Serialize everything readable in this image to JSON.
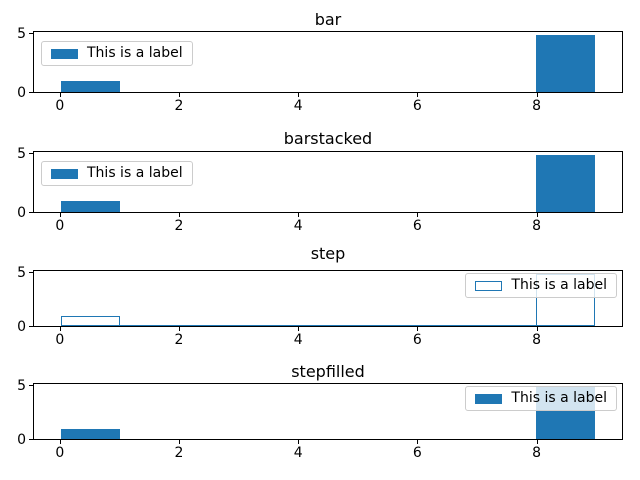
{
  "colors": {
    "accent": "#1f77b4",
    "legend_border": "#cccccc",
    "spine": "#000000"
  },
  "legend_label": "This is a label",
  "chart_data": [
    {
      "type": "bar",
      "chart_kind": "histogram",
      "title": "bar",
      "histtype": "bar",
      "bin_edges": [
        0,
        1,
        2,
        3,
        4,
        5,
        6,
        7,
        8,
        9
      ],
      "counts": [
        1,
        0,
        0,
        0,
        0,
        0,
        0,
        0,
        5
      ],
      "xlim": [
        -0.45,
        9.45
      ],
      "ylim": [
        0,
        5.25
      ],
      "xticks": [
        0,
        2,
        4,
        6,
        8
      ],
      "yticks": [
        0,
        5
      ],
      "legend": {
        "label": "This is a label",
        "loc": "upper left",
        "swatch": "filled"
      }
    },
    {
      "type": "bar",
      "chart_kind": "histogram",
      "title": "barstacked",
      "histtype": "barstacked",
      "bin_edges": [
        0,
        1,
        2,
        3,
        4,
        5,
        6,
        7,
        8,
        9
      ],
      "counts": [
        1,
        0,
        0,
        0,
        0,
        0,
        0,
        0,
        5
      ],
      "xlim": [
        -0.45,
        9.45
      ],
      "ylim": [
        0,
        5.25
      ],
      "xticks": [
        0,
        2,
        4,
        6,
        8
      ],
      "yticks": [
        0,
        5
      ],
      "legend": {
        "label": "This is a label",
        "loc": "upper left",
        "swatch": "filled"
      }
    },
    {
      "type": "bar",
      "chart_kind": "histogram",
      "title": "step",
      "histtype": "step",
      "bin_edges": [
        0,
        1,
        2,
        3,
        4,
        5,
        6,
        7,
        8,
        9
      ],
      "counts": [
        1,
        0,
        0,
        0,
        0,
        0,
        0,
        0,
        5
      ],
      "xlim": [
        -0.45,
        9.45
      ],
      "ylim": [
        0,
        5.25
      ],
      "xticks": [
        0,
        2,
        4,
        6,
        8
      ],
      "yticks": [
        0,
        5
      ],
      "legend": {
        "label": "This is a label",
        "loc": "upper right",
        "swatch": "outline"
      }
    },
    {
      "type": "bar",
      "chart_kind": "histogram",
      "title": "stepfilled",
      "histtype": "stepfilled",
      "bin_edges": [
        0,
        1,
        2,
        3,
        4,
        5,
        6,
        7,
        8,
        9
      ],
      "counts": [
        1,
        0,
        0,
        0,
        0,
        0,
        0,
        0,
        5
      ],
      "xlim": [
        -0.45,
        9.45
      ],
      "ylim": [
        0,
        5.25
      ],
      "xticks": [
        0,
        2,
        4,
        6,
        8
      ],
      "yticks": [
        0,
        5
      ],
      "legend": {
        "label": "This is a label",
        "loc": "upper right",
        "swatch": "filled"
      }
    }
  ]
}
